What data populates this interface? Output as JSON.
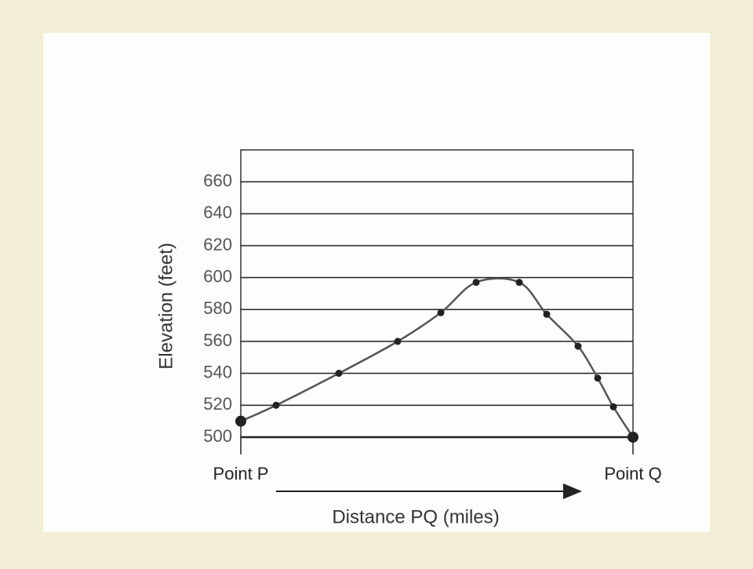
{
  "chart_data": {
    "type": "line",
    "y_label": "Elevation (feet)",
    "x_label": "Distance PQ (miles)",
    "x": [
      0,
      9,
      25,
      40,
      51,
      60,
      71,
      78,
      86,
      91,
      95,
      100
    ],
    "series": [
      {
        "color": "#555555",
        "values": [
          510,
          520,
          540,
          560,
          578,
          597,
          597,
          577,
          557,
          537,
          519,
          500
        ]
      }
    ],
    "xlim": [
      0,
      100
    ],
    "xticks": [
      {
        "value": 0,
        "label": "Point P"
      },
      {
        "value": 100,
        "label": "Point Q"
      }
    ],
    "ylim": [
      500,
      680
    ],
    "yticks": [
      500,
      520,
      540,
      560,
      580,
      600,
      620,
      640,
      660
    ],
    "grid": true
  }
}
